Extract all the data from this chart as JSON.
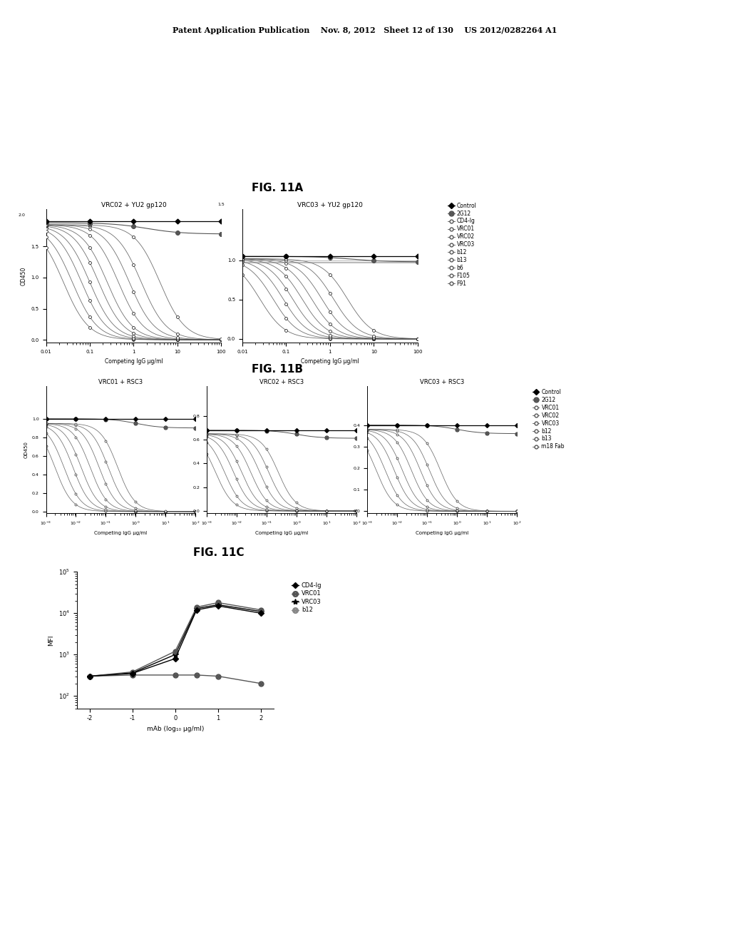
{
  "header_text": "Patent Application Publication    Nov. 8, 2012   Sheet 12 of 130    US 2012/0282264 A1",
  "fig11A_title": "FIG. 11A",
  "fig11B_title": "FIG. 11B",
  "fig11C_title": "FIG. 11C",
  "panel_A_left_title": "VRC02 + YU2 gp120",
  "panel_A_right_title": "VRC03 + YU2 gp120",
  "panel_B_left_title": "VRC01 + RSC3",
  "panel_B_mid_title": "VRC02 + RSC3",
  "panel_B_right_title": "VRC03 + RSC3",
  "legend_A": [
    "Control",
    "2G12",
    "CD4-Ig",
    "VRC01",
    "VRC02",
    "VRC03",
    "b12",
    "b13",
    "b6",
    "F105",
    "F91"
  ],
  "legend_B": [
    "Control",
    "2G12",
    "VRC01",
    "VRC02",
    "VRC03",
    "b12",
    "b13",
    "m18 Fab"
  ],
  "legend_C": [
    "CD4-Ig",
    "VRC01",
    "VRC03",
    "b12"
  ],
  "xlabel_A": "Competing IgG μg/ml",
  "xlabel_B": "Competing IgG μg/ml",
  "xlabel_C": "mAb (log₁₀ μg/ml)",
  "ylabel_A": "OD450",
  "ylabel_B": "OD450",
  "ylabel_C": "MFI",
  "background_color": "#ffffff",
  "text_color": "#000000"
}
